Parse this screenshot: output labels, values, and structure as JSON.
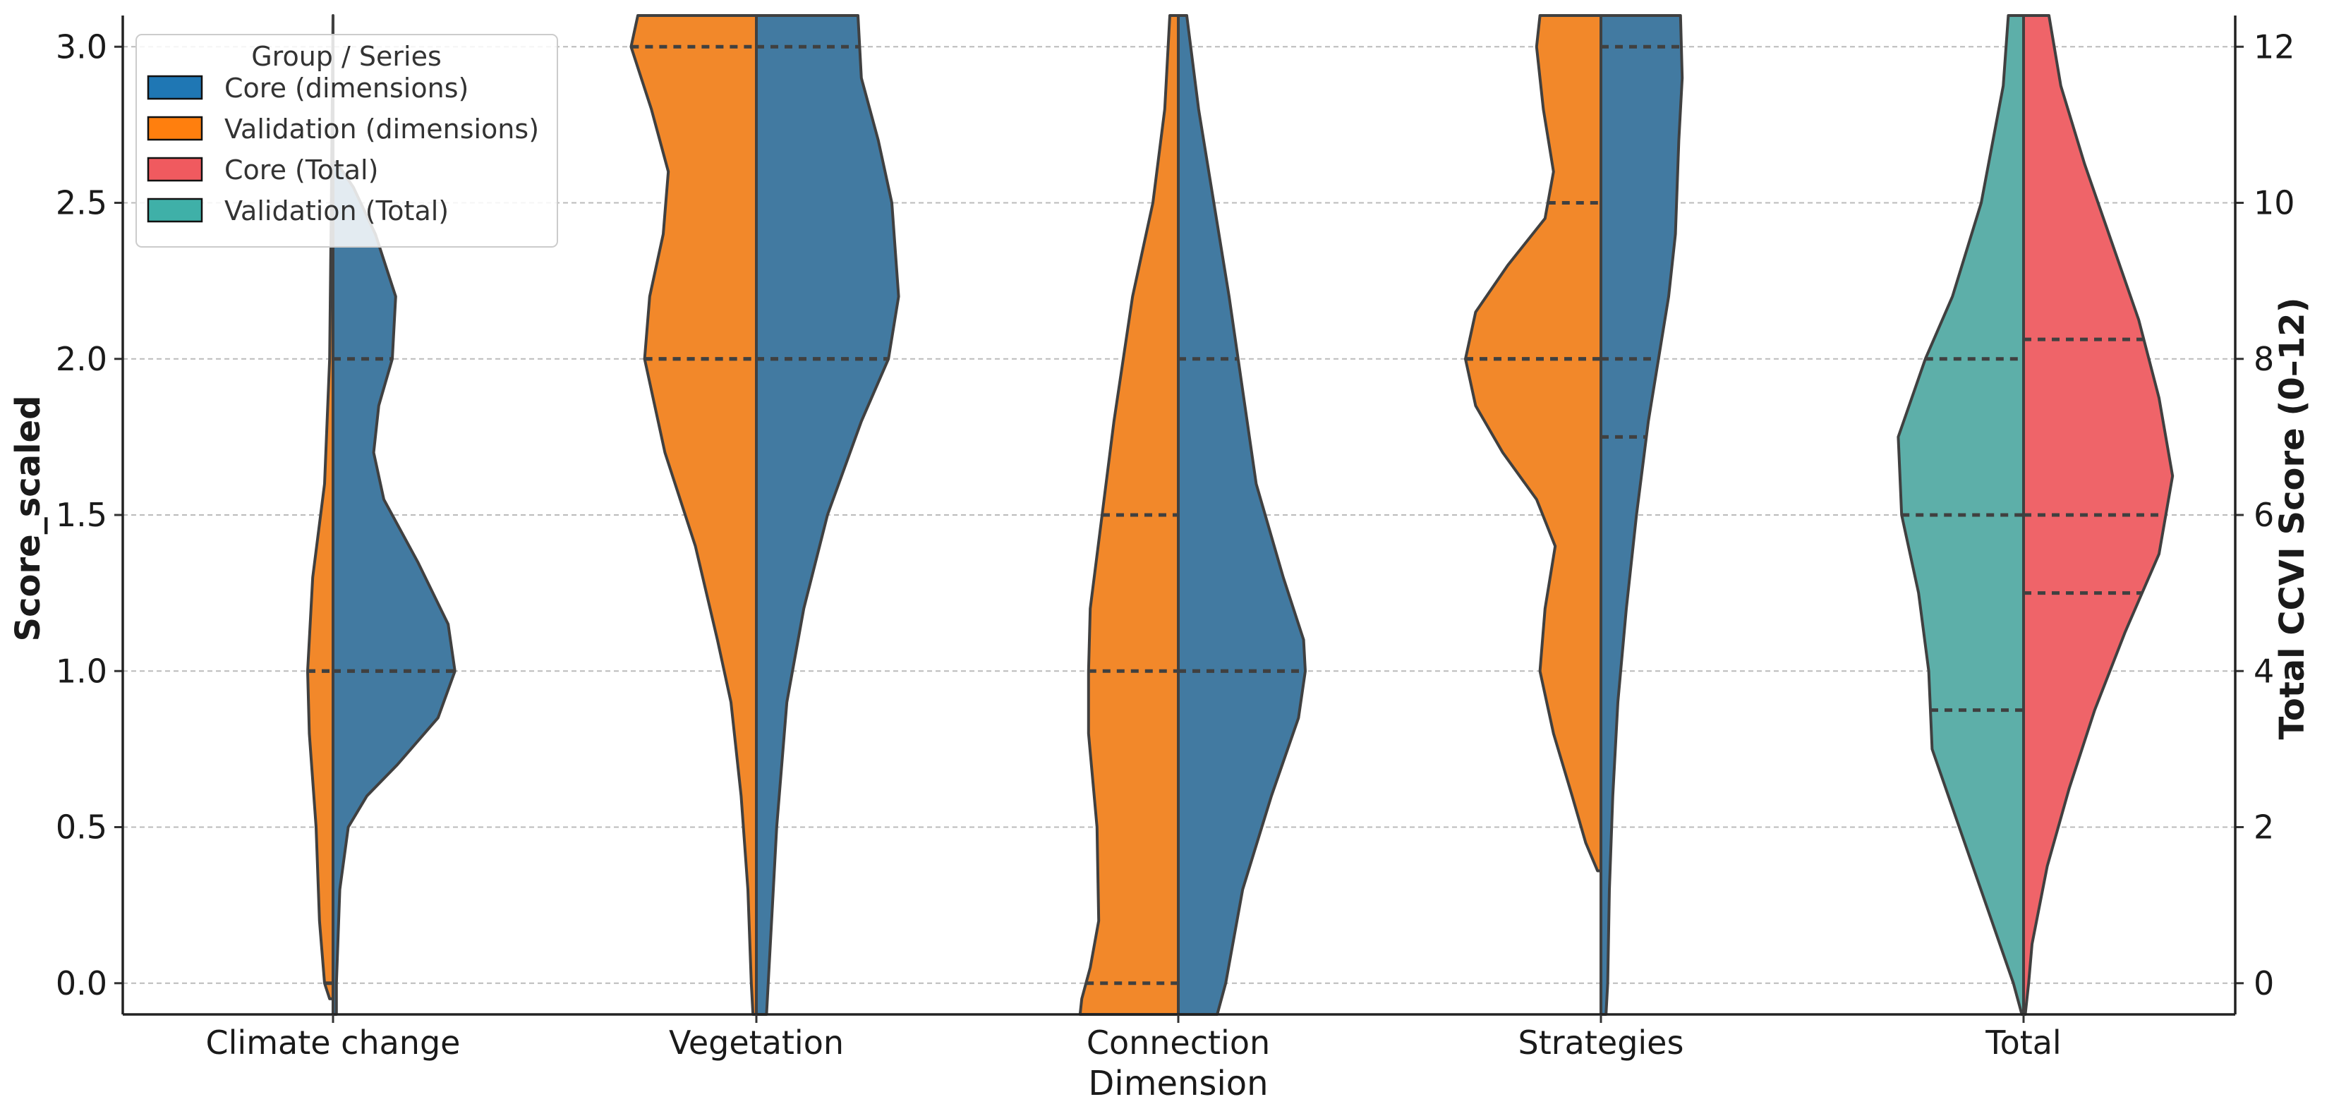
{
  "chart_data": {
    "type": "split-violin",
    "xlabel": "Dimension",
    "ylabel_left": "Score_scaled",
    "ylabel_right": "Total CCVI Score (0–12)",
    "categories": [
      "Climate change",
      "Vegetation",
      "Connection",
      "Strategies",
      "Total"
    ],
    "y_left": {
      "min": -0.1,
      "max": 3.1,
      "ticks": [
        "0.0",
        "0.5",
        "1.0",
        "1.5",
        "2.0",
        "2.5",
        "3.0"
      ]
    },
    "y_right": {
      "min": -0.4,
      "max": 12.4,
      "ticks": [
        "0",
        "2",
        "4",
        "6",
        "8",
        "10",
        "12"
      ]
    },
    "grid": true,
    "legend": {
      "title": "Group / Series",
      "position": "top-left",
      "items": [
        {
          "label": "Core (dimensions)",
          "color": "#1f77b4"
        },
        {
          "label": "Validation (dimensions)",
          "color": "#ff7f0e"
        },
        {
          "label": "Core (Total)",
          "color": "#f05a5f"
        },
        {
          "label": "Validation (Total)",
          "color": "#3fb0a8"
        }
      ]
    },
    "colors": {
      "core_dim": "#427aa1",
      "validation_dim": "#f2882a",
      "core_total": "#ef6469",
      "validation_total": "#5dafa9",
      "outline": "#404040",
      "grid": "#bbbbbb"
    },
    "violins": [
      {
        "category": "Climate change",
        "left": {
          "series": "Validation (dimensions)",
          "profile": [
            [
              -0.05,
              0.02
            ],
            [
              0.0,
              0.05
            ],
            [
              0.2,
              0.08
            ],
            [
              0.5,
              0.1
            ],
            [
              0.8,
              0.14
            ],
            [
              1.0,
              0.15
            ],
            [
              1.3,
              0.12
            ],
            [
              1.6,
              0.05
            ],
            [
              2.0,
              0.02
            ],
            [
              2.5,
              0.01
            ],
            [
              3.1,
              0.0
            ]
          ],
          "quartiles": [
            0.0,
            1.0,
            1.0
          ]
        },
        "right": {
          "series": "Core (dimensions)",
          "profile": [
            [
              2.63,
              0.02
            ],
            [
              2.55,
              0.12
            ],
            [
              2.4,
              0.25
            ],
            [
              2.2,
              0.37
            ],
            [
              2.0,
              0.35
            ],
            [
              1.85,
              0.27
            ],
            [
              1.7,
              0.24
            ],
            [
              1.55,
              0.3
            ],
            [
              1.35,
              0.5
            ],
            [
              1.15,
              0.68
            ],
            [
              1.0,
              0.72
            ],
            [
              0.85,
              0.62
            ],
            [
              0.7,
              0.38
            ],
            [
              0.6,
              0.2
            ],
            [
              0.5,
              0.09
            ],
            [
              0.3,
              0.04
            ],
            [
              0.0,
              0.02
            ],
            [
              -0.1,
              0.02
            ]
          ],
          "quartiles": [
            1.0,
            1.0,
            2.0
          ]
        }
      },
      {
        "category": "Vegetation",
        "left": {
          "series": "Validation (dimensions)",
          "profile": [
            [
              3.1,
              0.7
            ],
            [
              3.0,
              0.74
            ],
            [
              2.8,
              0.62
            ],
            [
              2.6,
              0.52
            ],
            [
              2.4,
              0.55
            ],
            [
              2.2,
              0.63
            ],
            [
              2.0,
              0.66
            ],
            [
              1.7,
              0.54
            ],
            [
              1.4,
              0.36
            ],
            [
              1.1,
              0.23
            ],
            [
              0.9,
              0.15
            ],
            [
              0.6,
              0.09
            ],
            [
              0.3,
              0.05
            ],
            [
              0.0,
              0.03
            ],
            [
              -0.1,
              0.02
            ]
          ],
          "quartiles": [
            2.0,
            2.0,
            3.0
          ]
        },
        "right": {
          "series": "Core (dimensions)",
          "profile": [
            [
              3.1,
              0.6
            ],
            [
              2.9,
              0.62
            ],
            [
              2.7,
              0.72
            ],
            [
              2.5,
              0.8
            ],
            [
              2.2,
              0.84
            ],
            [
              2.0,
              0.78
            ],
            [
              1.8,
              0.62
            ],
            [
              1.5,
              0.42
            ],
            [
              1.2,
              0.28
            ],
            [
              0.9,
              0.18
            ],
            [
              0.5,
              0.12
            ],
            [
              0.2,
              0.09
            ],
            [
              0.0,
              0.07
            ],
            [
              -0.1,
              0.06
            ]
          ],
          "quartiles": [
            2.0,
            2.0,
            3.0
          ]
        }
      },
      {
        "category": "Connection",
        "left": {
          "series": "Validation (dimensions)",
          "profile": [
            [
              3.1,
              0.05
            ],
            [
              2.8,
              0.08
            ],
            [
              2.5,
              0.15
            ],
            [
              2.2,
              0.27
            ],
            [
              1.8,
              0.38
            ],
            [
              1.5,
              0.45
            ],
            [
              1.2,
              0.52
            ],
            [
              1.0,
              0.53
            ],
            [
              0.8,
              0.53
            ],
            [
              0.5,
              0.48
            ],
            [
              0.2,
              0.47
            ],
            [
              0.05,
              0.52
            ],
            [
              -0.05,
              0.57
            ],
            [
              -0.1,
              0.58
            ]
          ],
          "quartiles": [
            0.0,
            1.0,
            1.5
          ]
        },
        "right": {
          "series": "Core (dimensions)",
          "profile": [
            [
              3.1,
              0.05
            ],
            [
              2.8,
              0.12
            ],
            [
              2.5,
              0.21
            ],
            [
              2.2,
              0.3
            ],
            [
              1.9,
              0.38
            ],
            [
              1.6,
              0.46
            ],
            [
              1.3,
              0.62
            ],
            [
              1.1,
              0.74
            ],
            [
              1.0,
              0.75
            ],
            [
              0.85,
              0.71
            ],
            [
              0.6,
              0.55
            ],
            [
              0.3,
              0.38
            ],
            [
              0.0,
              0.28
            ],
            [
              -0.1,
              0.23
            ]
          ],
          "quartiles": [
            1.0,
            1.0,
            2.0
          ]
        }
      },
      {
        "category": "Strategies",
        "left": {
          "series": "Validation (dimensions)",
          "profile": [
            [
              3.1,
              0.36
            ],
            [
              3.0,
              0.38
            ],
            [
              2.8,
              0.34
            ],
            [
              2.6,
              0.28
            ],
            [
              2.45,
              0.33
            ],
            [
              2.3,
              0.55
            ],
            [
              2.15,
              0.74
            ],
            [
              2.0,
              0.8
            ],
            [
              1.85,
              0.74
            ],
            [
              1.7,
              0.58
            ],
            [
              1.55,
              0.38
            ],
            [
              1.4,
              0.27
            ],
            [
              1.2,
              0.33
            ],
            [
              1.0,
              0.36
            ],
            [
              0.8,
              0.28
            ],
            [
              0.6,
              0.17
            ],
            [
              0.45,
              0.09
            ],
            [
              0.36,
              0.02
            ]
          ],
          "quartiles": [
            2.0,
            2.0,
            2.5
          ]
        },
        "right": {
          "series": "Core (dimensions)",
          "profile": [
            [
              3.1,
              0.47
            ],
            [
              2.9,
              0.48
            ],
            [
              2.7,
              0.46
            ],
            [
              2.4,
              0.44
            ],
            [
              2.2,
              0.4
            ],
            [
              2.0,
              0.34
            ],
            [
              1.8,
              0.28
            ],
            [
              1.5,
              0.21
            ],
            [
              1.2,
              0.15
            ],
            [
              0.9,
              0.1
            ],
            [
              0.6,
              0.07
            ],
            [
              0.3,
              0.05
            ],
            [
              0.0,
              0.04
            ],
            [
              -0.1,
              0.03
            ]
          ],
          "quartiles": [
            1.75,
            2.0,
            3.0
          ]
        }
      },
      {
        "category": "Total",
        "left": {
          "series": "Validation (Total)",
          "profile": [
            [
              12.4,
              0.09
            ],
            [
              11.5,
              0.12
            ],
            [
              10.0,
              0.25
            ],
            [
              8.8,
              0.42
            ],
            [
              8.0,
              0.58
            ],
            [
              7.0,
              0.74
            ],
            [
              6.0,
              0.72
            ],
            [
              5.0,
              0.62
            ],
            [
              4.0,
              0.56
            ],
            [
              3.0,
              0.54
            ],
            [
              2.0,
              0.38
            ],
            [
              1.0,
              0.22
            ],
            [
              0.0,
              0.06
            ],
            [
              -0.4,
              0.01
            ]
          ],
          "quartiles": [
            3.5,
            6.0,
            8.0
          ]
        },
        "right": {
          "series": "Core (Total)",
          "profile": [
            [
              12.4,
              0.15
            ],
            [
              11.5,
              0.22
            ],
            [
              10.5,
              0.36
            ],
            [
              9.5,
              0.52
            ],
            [
              8.5,
              0.68
            ],
            [
              7.5,
              0.8
            ],
            [
              6.5,
              0.88
            ],
            [
              5.5,
              0.8
            ],
            [
              4.5,
              0.6
            ],
            [
              3.5,
              0.42
            ],
            [
              2.5,
              0.27
            ],
            [
              1.5,
              0.14
            ],
            [
              0.5,
              0.05
            ],
            [
              0.0,
              0.03
            ],
            [
              -0.4,
              0.01
            ]
          ],
          "quartiles": [
            5.0,
            6.0,
            8.25
          ]
        }
      }
    ]
  }
}
